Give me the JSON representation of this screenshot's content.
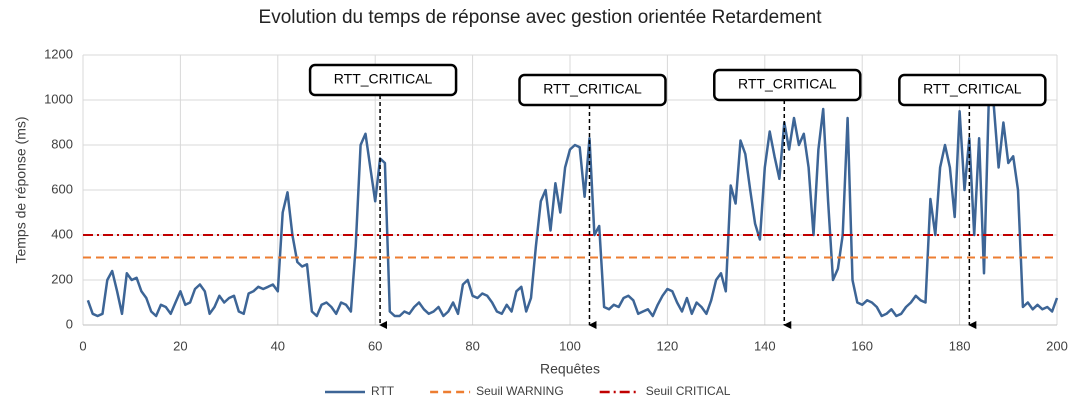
{
  "chart_data": {
    "type": "line",
    "title": "Evolution du temps de réponse avec gestion orientée Retardement",
    "x_label": "Requêtes",
    "y_label": "Temps de réponse (ms)",
    "xlim": [
      0,
      200
    ],
    "xticks": [
      0,
      20,
      40,
      60,
      80,
      100,
      120,
      140,
      160,
      180,
      200
    ],
    "ylim": [
      0,
      1200
    ],
    "yticks": [
      0,
      200,
      400,
      600,
      800,
      1000,
      1200
    ],
    "grid": true,
    "legend": "bottom",
    "x": [
      1,
      2,
      3,
      4,
      5,
      6,
      7,
      8,
      9,
      10,
      11,
      12,
      13,
      14,
      15,
      16,
      17,
      18,
      19,
      20,
      21,
      22,
      23,
      24,
      25,
      26,
      27,
      28,
      29,
      30,
      31,
      32,
      33,
      34,
      35,
      36,
      37,
      38,
      39,
      40,
      41,
      42,
      43,
      44,
      45,
      46,
      47,
      48,
      49,
      50,
      51,
      52,
      53,
      54,
      55,
      56,
      57,
      58,
      59,
      60,
      61,
      62,
      63,
      64,
      65,
      66,
      67,
      68,
      69,
      70,
      71,
      72,
      73,
      74,
      75,
      76,
      77,
      78,
      79,
      80,
      81,
      82,
      83,
      84,
      85,
      86,
      87,
      88,
      89,
      90,
      91,
      92,
      93,
      94,
      95,
      96,
      97,
      98,
      99,
      100,
      101,
      102,
      103,
      104,
      105,
      106,
      107,
      108,
      109,
      110,
      111,
      112,
      113,
      114,
      115,
      116,
      117,
      118,
      119,
      120,
      121,
      122,
      123,
      124,
      125,
      126,
      127,
      128,
      129,
      130,
      131,
      132,
      133,
      134,
      135,
      136,
      137,
      138,
      139,
      140,
      141,
      142,
      143,
      144,
      145,
      146,
      147,
      148,
      149,
      150,
      151,
      152,
      153,
      154,
      155,
      156,
      157,
      158,
      159,
      160,
      161,
      162,
      163,
      164,
      165,
      166,
      167,
      168,
      169,
      170,
      171,
      172,
      173,
      174,
      175,
      176,
      177,
      178,
      179,
      180,
      181,
      182,
      183,
      184,
      185,
      186,
      187,
      188,
      189,
      190,
      191,
      192,
      193,
      194,
      195,
      196,
      197,
      198,
      199,
      200
    ],
    "series": [
      {
        "name": "RTT",
        "color": "#3d6596",
        "style": "solid",
        "values": [
          110,
          50,
          40,
          50,
          200,
          240,
          150,
          50,
          230,
          200,
          210,
          150,
          120,
          60,
          40,
          90,
          80,
          50,
          100,
          150,
          90,
          100,
          160,
          180,
          150,
          50,
          80,
          130,
          100,
          120,
          130,
          60,
          50,
          140,
          150,
          170,
          160,
          170,
          180,
          150,
          500,
          590,
          400,
          280,
          260,
          270,
          60,
          40,
          90,
          100,
          80,
          50,
          100,
          90,
          60,
          350,
          800,
          850,
          700,
          550,
          740,
          720,
          60,
          40,
          40,
          60,
          50,
          80,
          100,
          70,
          50,
          60,
          80,
          40,
          60,
          100,
          50,
          180,
          200,
          130,
          120,
          140,
          130,
          100,
          60,
          50,
          90,
          60,
          150,
          170,
          60,
          120,
          350,
          550,
          600,
          420,
          630,
          500,
          700,
          780,
          800,
          790,
          570,
          830,
          400,
          440,
          80,
          70,
          90,
          80,
          120,
          130,
          110,
          50,
          60,
          70,
          40,
          90,
          130,
          160,
          150,
          100,
          60,
          120,
          50,
          100,
          80,
          50,
          110,
          200,
          230,
          150,
          620,
          540,
          820,
          760,
          600,
          450,
          380,
          700,
          860,
          750,
          650,
          900,
          780,
          920,
          800,
          850,
          700,
          400,
          780,
          960,
          550,
          200,
          250,
          400,
          920,
          200,
          100,
          90,
          110,
          100,
          80,
          40,
          50,
          70,
          40,
          50,
          80,
          100,
          130,
          110,
          100,
          560,
          400,
          700,
          800,
          700,
          480,
          950,
          600,
          830,
          400,
          830,
          230,
          1000,
          980,
          700,
          900,
          720,
          750,
          600,
          80,
          100,
          70,
          90,
          70,
          80,
          60,
          120
        ]
      },
      {
        "name": "Seuil WARNING",
        "color": "#ed7d31",
        "style": "dashed",
        "x": [
          0,
          200
        ],
        "values": [
          300,
          300
        ]
      },
      {
        "name": "Seuil CRITICAL",
        "color": "#c00000",
        "style": "dashdot",
        "x": [
          0,
          200
        ],
        "values": [
          400,
          400
        ]
      }
    ],
    "annotations": [
      {
        "text": "RTT_CRITICAL",
        "x": 61
      },
      {
        "text": "RTT_CRITICAL",
        "x": 104
      },
      {
        "text": "RTT_CRITICAL",
        "x": 144
      },
      {
        "text": "RTT_CRITICAL",
        "x": 182
      }
    ]
  }
}
